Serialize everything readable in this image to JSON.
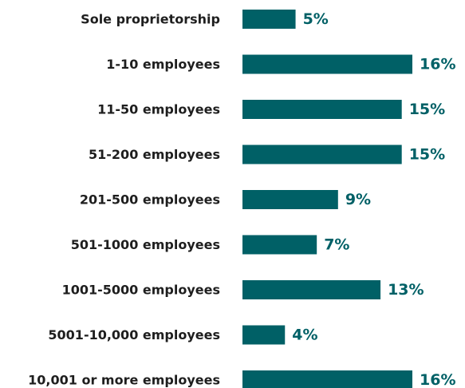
{
  "colors": {
    "bar": "#006066",
    "value_text": "#006066",
    "category_text": "#1e1e1e"
  },
  "chart_data": {
    "type": "bar",
    "orientation": "horizontal",
    "categories": [
      "Sole proprietorship",
      "1-10 employees",
      "11-50 employees",
      "51-200 employees",
      "201-500 employees",
      "501-1000 employees",
      "1001-5000 employees",
      "5001-10,000 employees",
      "10,001 or more employees"
    ],
    "values": [
      5,
      16,
      15,
      15,
      9,
      7,
      13,
      4,
      16
    ],
    "value_labels": [
      "5%",
      "16%",
      "15%",
      "15%",
      "9%",
      "7%",
      "13%",
      "4%",
      "16%"
    ],
    "unit": "%",
    "xlim": [
      0,
      16
    ],
    "grid": false,
    "legend": "none"
  }
}
